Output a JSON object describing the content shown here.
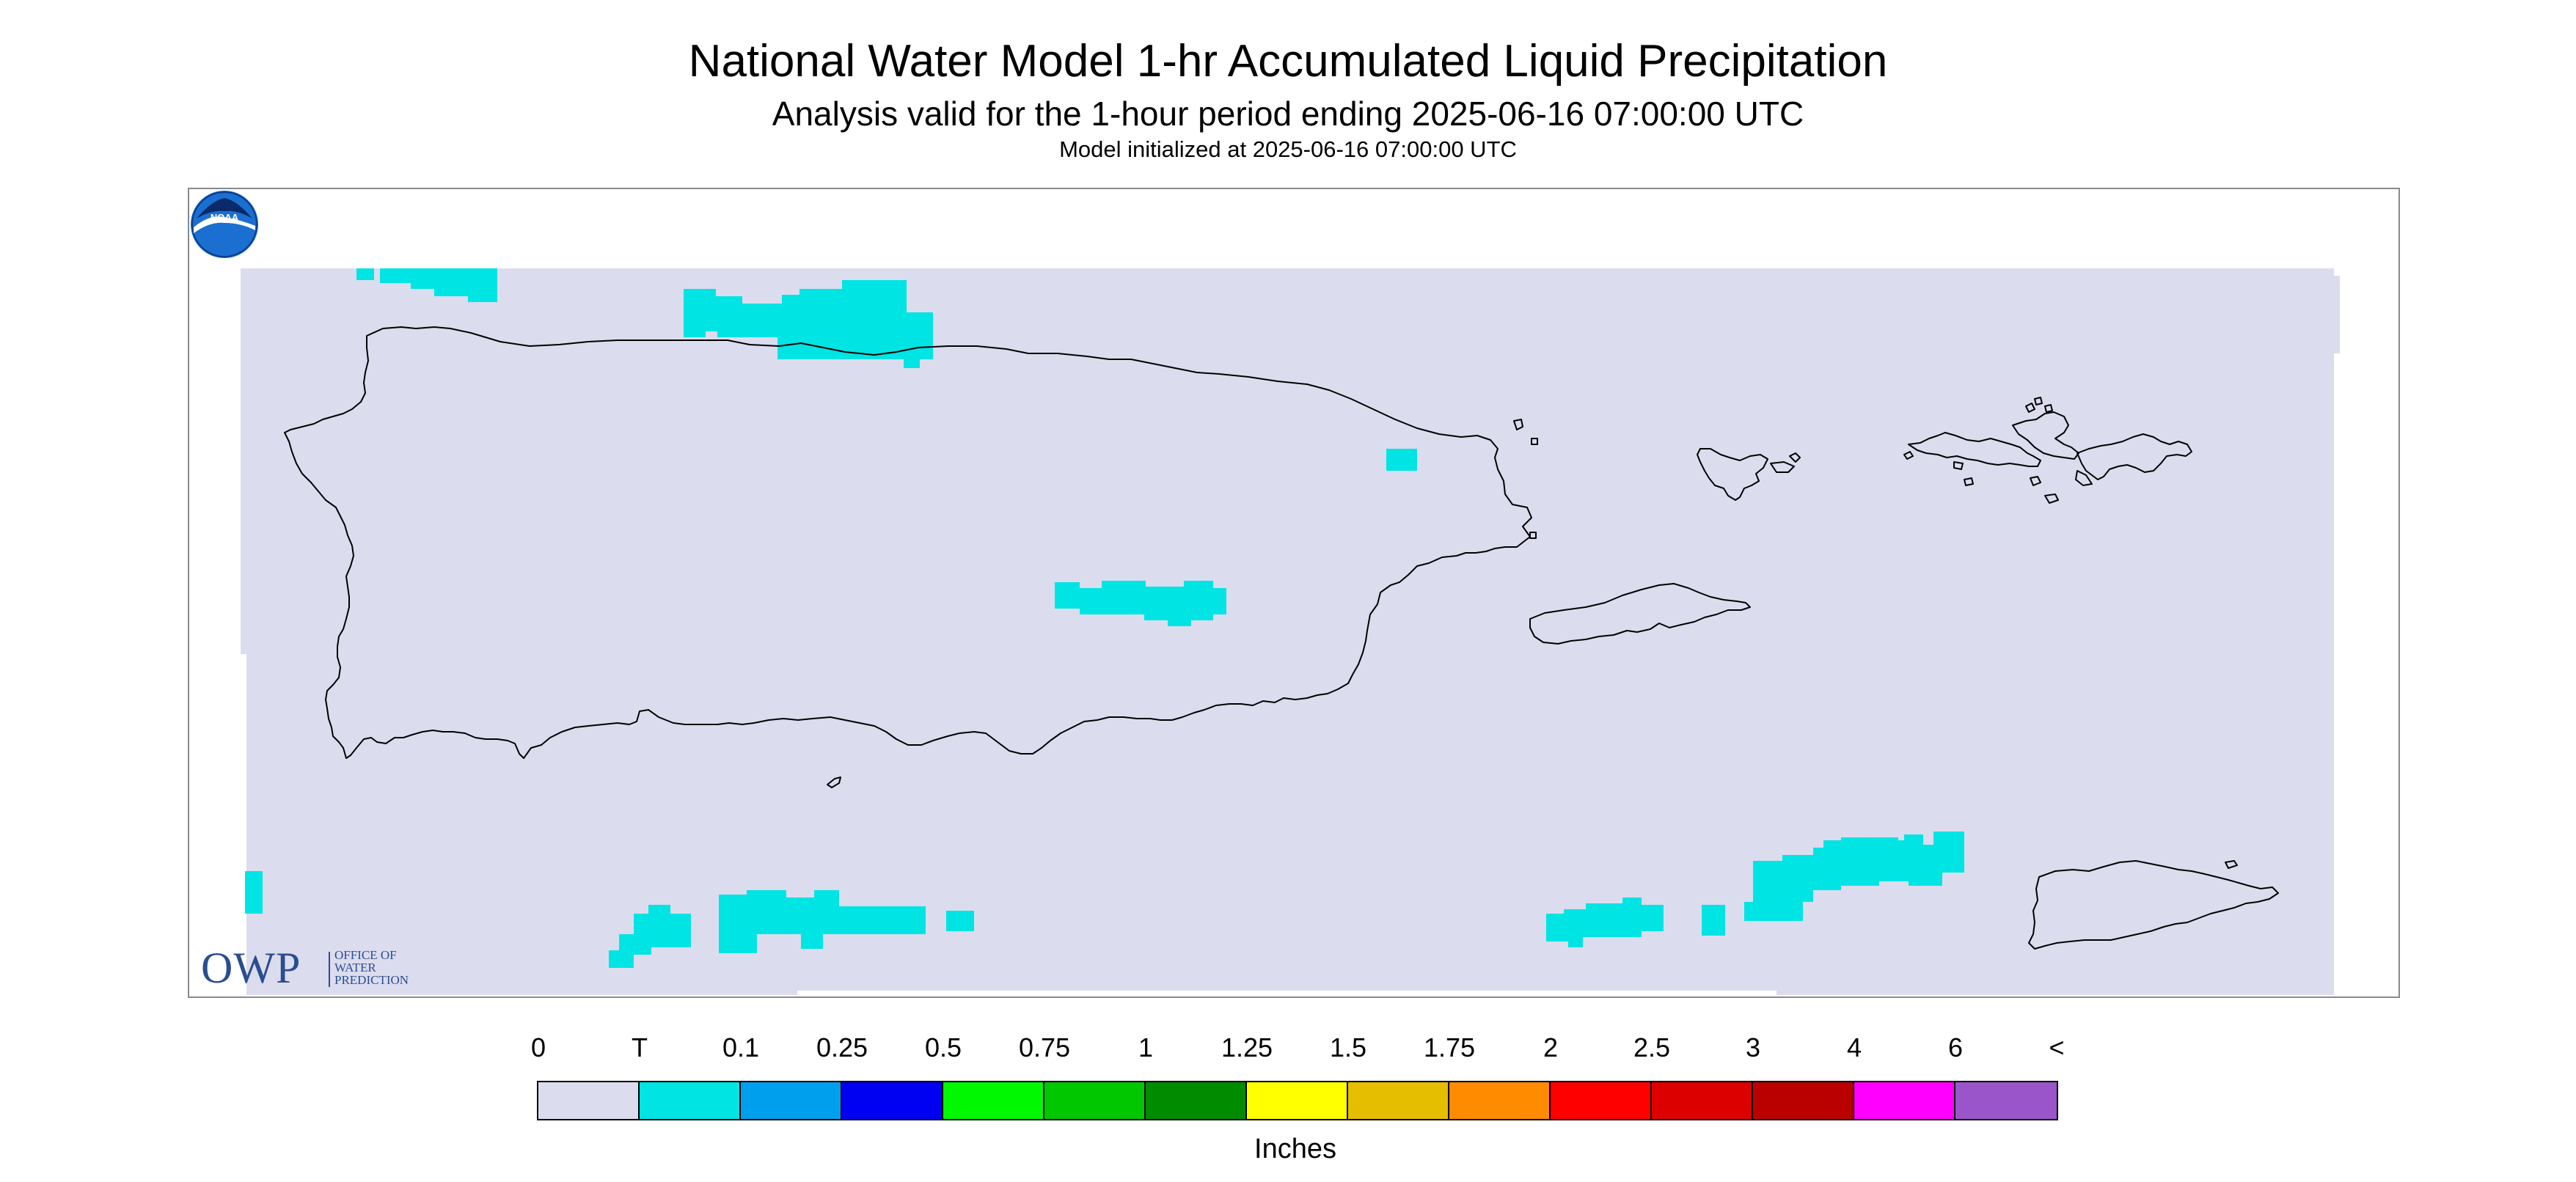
{
  "title": "National Water Model 1-hr Accumulated Liquid Precipitation",
  "subtitle": "Analysis valid for the 1-hour period ending 2025-06-16 07:00:00 UTC",
  "init_line": "Model initialized at 2025-06-16 07:00:00 UTC",
  "map": {
    "background_color": "#dcdcef",
    "precip_color": "#00e4e4",
    "coast_color": "#000000",
    "region": "Puerto Rico and U.S. Virgin Islands",
    "precip_category_present": "T"
  },
  "logos": {
    "owp_big": "OWP",
    "owp_line1": "Office of",
    "owp_line2": "Water",
    "owp_line3": "Prediction",
    "noaa": "NOAA"
  },
  "legend": {
    "labels": [
      "0",
      "T",
      "0.1",
      "0.25",
      "0.5",
      "0.75",
      "1",
      "1.25",
      "1.5",
      "1.75",
      "2",
      "2.5",
      "3",
      "4",
      "6",
      "<"
    ],
    "colors": [
      "#dcdcef",
      "#00e4e4",
      "#009fee",
      "#0000f2",
      "#00f900",
      "#00c700",
      "#008b00",
      "#ffff00",
      "#e6be00",
      "#ff8b00",
      "#ff0000",
      "#dd0000",
      "#bb0000",
      "#ff00ff",
      "#9b55cb"
    ],
    "units": "Inches"
  }
}
